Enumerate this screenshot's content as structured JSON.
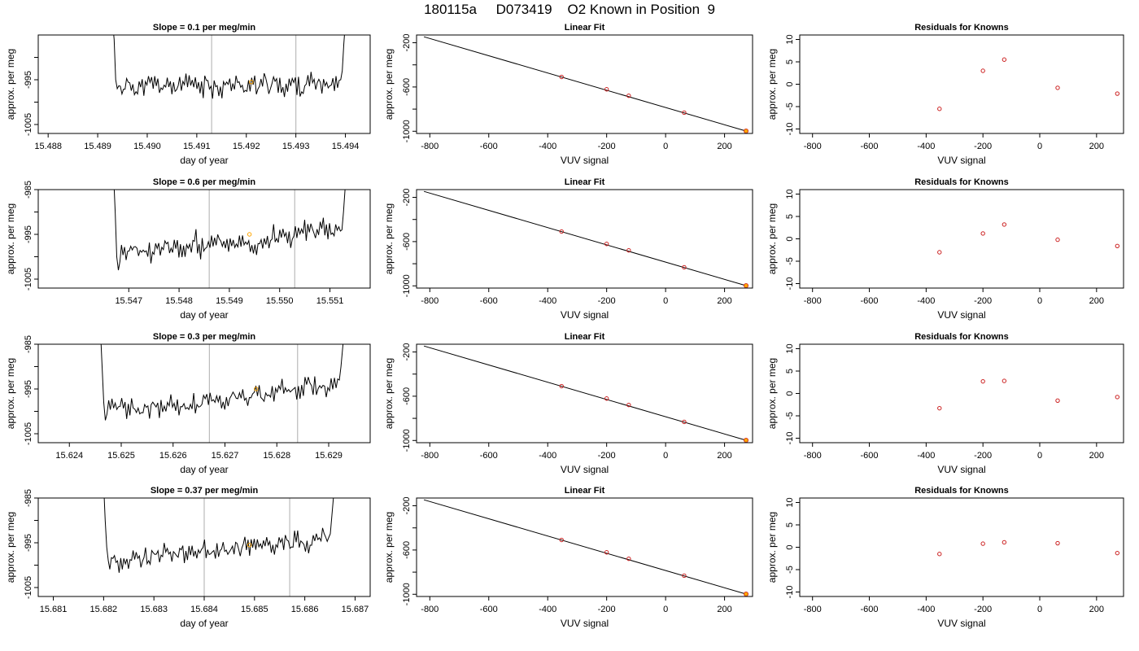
{
  "figure": {
    "title": "180115a     D073419    O2 Known in Position  9",
    "colors": {
      "trace": "#000000",
      "marker": "#ffa500",
      "residual": "#cc2222",
      "vline": "#bbbbbb",
      "fit_line": "#000000"
    }
  },
  "chart_data": [
    {
      "type": "line",
      "name": "row1-trace",
      "title": "Slope =  0.1  per meg/min",
      "xlabel": "day of year",
      "ylabel": "approx. per meg",
      "xlim": [
        15.4878,
        15.4945
      ],
      "ylim": [
        -1007,
        -985
      ],
      "xticks": [
        15.488,
        15.489,
        15.49,
        15.491,
        15.492,
        15.493,
        15.494
      ],
      "xtick_labels": [
        "15.488",
        "15.489",
        "15.490",
        "15.491",
        "15.492",
        "15.493",
        "15.494"
      ],
      "yticks": [
        -1005,
        -1000,
        -995,
        -990
      ],
      "ytick_labels": [
        "-1005",
        "",
        "-995",
        ""
      ],
      "x_start": 15.4893,
      "x_end": 15.494,
      "series_seed": 11,
      "entry_y": [
        -982,
        -986,
        -995,
        -997
      ],
      "exit_y": [
        -995,
        -993,
        -987,
        -982
      ],
      "mean": -996.5,
      "drift": 0.5,
      "amp": 1.6,
      "vlines": [
        15.4913,
        15.493
      ],
      "marker": {
        "x": 15.4921,
        "y": -995.5
      }
    },
    {
      "type": "line",
      "name": "fit-row1",
      "title": "Linear Fit",
      "xlabel": "VUV signal",
      "ylabel": "approx. per meg",
      "xlim": [
        -845,
        295
      ],
      "ylim": [
        -1020,
        -130
      ],
      "xticks": [
        -800,
        -600,
        -400,
        -200,
        0,
        200
      ],
      "xtick_labels": [
        "-800",
        "-600",
        "-400",
        "-200",
        "0",
        "200"
      ],
      "yticks": [
        -1000,
        -800,
        -600,
        -400,
        -200
      ],
      "ytick_labels": [
        "-1000",
        "",
        "-600",
        "",
        "-200"
      ],
      "fit_x": [
        -820,
        275
      ],
      "fit_y": [
        -146,
        -1000
      ],
      "points": [
        {
          "x": -353,
          "y": -509
        },
        {
          "x": -200,
          "y": -621
        },
        {
          "x": -125,
          "y": -679
        },
        {
          "x": 63,
          "y": -832
        }
      ],
      "highlight": {
        "x": 273,
        "y": -998
      }
    },
    {
      "type": "scatter",
      "name": "resid-row1",
      "title": "Residuals for Knowns",
      "xlabel": "VUV signal",
      "ylabel": "approx. per meg",
      "xlim": [
        -845,
        295
      ],
      "ylim": [
        -11,
        11
      ],
      "xticks": [
        -800,
        -600,
        -400,
        -200,
        0,
        200
      ],
      "xtick_labels": [
        "-800",
        "-600",
        "-400",
        "-200",
        "0",
        "200"
      ],
      "yticks": [
        -10,
        -5,
        0,
        5,
        10
      ],
      "ytick_labels": [
        "-10",
        "-5",
        "0",
        "5",
        "10"
      ],
      "points": [
        {
          "x": -353,
          "y": -5.5
        },
        {
          "x": -200,
          "y": 3.0
        },
        {
          "x": -125,
          "y": 5.5
        },
        {
          "x": 63,
          "y": -0.8
        },
        {
          "x": 273,
          "y": -2.1
        }
      ]
    },
    {
      "type": "line",
      "name": "row2-trace",
      "title": "Slope =  0.6  per meg/min",
      "xlabel": "day of year",
      "ylabel": "approx. per meg",
      "xlim": [
        15.5452,
        15.5518
      ],
      "ylim": [
        -1007,
        -985
      ],
      "xticks": [
        15.547,
        15.548,
        15.549,
        15.55,
        15.551
      ],
      "xtick_labels": [
        "15.547",
        "15.548",
        "15.549",
        "15.550",
        "15.551"
      ],
      "yticks": [
        -1005,
        -1000,
        -995,
        -990,
        -985
      ],
      "ytick_labels": [
        "-1005",
        "",
        "-995",
        "",
        "-985"
      ],
      "x_start": 15.5467,
      "x_end": 15.5513,
      "series_seed": 23,
      "entry_y": [
        -982,
        -990,
        -1000,
        -1003
      ],
      "exit_y": [
        -994,
        -990,
        -985
      ],
      "mean": -999.5,
      "drift": 5.5,
      "amp": 1.7,
      "vlines": [
        15.5486,
        15.5503
      ],
      "marker": {
        "x": 15.5494,
        "y": -995
      }
    },
    {
      "type": "line",
      "name": "fit-row2",
      "title": "Linear Fit",
      "xlabel": "VUV signal",
      "ylabel": "approx. per meg",
      "xlim": [
        -845,
        295
      ],
      "ylim": [
        -1020,
        -130
      ],
      "xticks": [
        -800,
        -600,
        -400,
        -200,
        0,
        200
      ],
      "xtick_labels": [
        "-800",
        "-600",
        "-400",
        "-200",
        "0",
        "200"
      ],
      "yticks": [
        -1000,
        -800,
        -600,
        -400,
        -200
      ],
      "ytick_labels": [
        "-1000",
        "",
        "-600",
        "",
        "-200"
      ],
      "fit_x": [
        -820,
        275
      ],
      "fit_y": [
        -146,
        -1000
      ],
      "points": [
        {
          "x": -353,
          "y": -509
        },
        {
          "x": -200,
          "y": -621
        },
        {
          "x": -125,
          "y": -679
        },
        {
          "x": 63,
          "y": -832
        }
      ],
      "highlight": {
        "x": 273,
        "y": -998
      }
    },
    {
      "type": "scatter",
      "name": "resid-row2",
      "title": "Residuals for Knowns",
      "xlabel": "VUV signal",
      "ylabel": "approx. per meg",
      "xlim": [
        -845,
        295
      ],
      "ylim": [
        -11,
        11
      ],
      "xticks": [
        -800,
        -600,
        -400,
        -200,
        0,
        200
      ],
      "xtick_labels": [
        "-800",
        "-600",
        "-400",
        "-200",
        "0",
        "200"
      ],
      "yticks": [
        -10,
        -5,
        0,
        5,
        10
      ],
      "ytick_labels": [
        "-10",
        "-5",
        "0",
        "5",
        "10"
      ],
      "points": [
        {
          "x": -353,
          "y": -3.0
        },
        {
          "x": -200,
          "y": 1.2
        },
        {
          "x": -125,
          "y": 3.2
        },
        {
          "x": 63,
          "y": -0.2
        },
        {
          "x": 273,
          "y": -1.6
        }
      ]
    },
    {
      "type": "line",
      "name": "row3-trace",
      "title": "Slope =  0.3  per meg/min",
      "xlabel": "day of year",
      "ylabel": "approx. per meg",
      "xlim": [
        15.6234,
        15.6298
      ],
      "ylim": [
        -1007,
        -985
      ],
      "xticks": [
        15.624,
        15.625,
        15.626,
        15.627,
        15.628,
        15.629
      ],
      "xtick_labels": [
        "15.624",
        "15.625",
        "15.626",
        "15.627",
        "15.628",
        "15.629"
      ],
      "yticks": [
        -1005,
        -1000,
        -995,
        -990,
        -985
      ],
      "ytick_labels": [
        "-1005",
        "",
        "-995",
        "",
        "-985"
      ],
      "x_start": 15.6246,
      "x_end": 15.6293,
      "series_seed": 37,
      "entry_y": [
        -982,
        -990,
        -998,
        -1002
      ],
      "exit_y": [
        -993,
        -990,
        -986,
        -982
      ],
      "mean": -1000.5,
      "drift": 6.5,
      "amp": 1.6,
      "vlines": [
        15.6267,
        15.6284
      ],
      "marker": {
        "x": 15.6276,
        "y": -995
      }
    },
    {
      "type": "line",
      "name": "fit-row3",
      "title": "Linear Fit",
      "xlabel": "VUV signal",
      "ylabel": "approx. per meg",
      "xlim": [
        -845,
        295
      ],
      "ylim": [
        -1020,
        -130
      ],
      "xticks": [
        -800,
        -600,
        -400,
        -200,
        0,
        200
      ],
      "xtick_labels": [
        "-800",
        "-600",
        "-400",
        "-200",
        "0",
        "200"
      ],
      "yticks": [
        -1000,
        -800,
        -600,
        -400,
        -200
      ],
      "ytick_labels": [
        "-1000",
        "",
        "-600",
        "",
        "-200"
      ],
      "fit_x": [
        -820,
        275
      ],
      "fit_y": [
        -146,
        -1000
      ],
      "points": [
        {
          "x": -353,
          "y": -509
        },
        {
          "x": -200,
          "y": -621
        },
        {
          "x": -125,
          "y": -679
        },
        {
          "x": 63,
          "y": -832
        }
      ],
      "highlight": {
        "x": 273,
        "y": -998
      }
    },
    {
      "type": "scatter",
      "name": "resid-row3",
      "title": "Residuals for Knowns",
      "xlabel": "VUV signal",
      "ylabel": "approx. per meg",
      "xlim": [
        -845,
        295
      ],
      "ylim": [
        -11,
        11
      ],
      "xticks": [
        -800,
        -600,
        -400,
        -200,
        0,
        200
      ],
      "xtick_labels": [
        "-800",
        "-600",
        "-400",
        "-200",
        "0",
        "200"
      ],
      "yticks": [
        -10,
        -5,
        0,
        5,
        10
      ],
      "ytick_labels": [
        "-10",
        "-5",
        "0",
        "5",
        "10"
      ],
      "points": [
        {
          "x": -353,
          "y": -3.3
        },
        {
          "x": -200,
          "y": 2.7
        },
        {
          "x": -125,
          "y": 2.8
        },
        {
          "x": 63,
          "y": -1.6
        },
        {
          "x": 273,
          "y": -0.8
        }
      ]
    },
    {
      "type": "line",
      "name": "row4-trace",
      "title": "Slope =  0.37  per meg/min",
      "xlabel": "day of year",
      "ylabel": "approx. per meg",
      "xlim": [
        15.6807,
        15.6873
      ],
      "ylim": [
        -1007,
        -985
      ],
      "xticks": [
        15.681,
        15.682,
        15.683,
        15.684,
        15.685,
        15.686,
        15.687
      ],
      "xtick_labels": [
        "15.681",
        "15.682",
        "15.683",
        "15.684",
        "15.685",
        "15.686",
        "15.687"
      ],
      "yticks": [
        -1005,
        -1000,
        -995,
        -990,
        -985
      ],
      "ytick_labels": [
        "-1005",
        "",
        "-995",
        "",
        "-985"
      ],
      "x_start": 15.682,
      "x_end": 15.6866,
      "series_seed": 53,
      "entry_y": [
        -982,
        -990,
        -996,
        -999
      ],
      "exit_y": [
        -993,
        -989,
        -985,
        -982
      ],
      "mean": -999,
      "drift": 5.0,
      "amp": 1.5,
      "vlines": [
        15.684,
        15.6857
      ],
      "marker": {
        "x": 15.6849,
        "y": -995.5
      }
    },
    {
      "type": "line",
      "name": "fit-row4",
      "title": "Linear Fit",
      "xlabel": "VUV signal",
      "ylabel": "approx. per meg",
      "xlim": [
        -845,
        295
      ],
      "ylim": [
        -1020,
        -130
      ],
      "xticks": [
        -800,
        -600,
        -400,
        -200,
        0,
        200
      ],
      "xtick_labels": [
        "-800",
        "-600",
        "-400",
        "-200",
        "0",
        "200"
      ],
      "yticks": [
        -1000,
        -800,
        -600,
        -400,
        -200
      ],
      "ytick_labels": [
        "-1000",
        "",
        "-600",
        "",
        "-200"
      ],
      "fit_x": [
        -820,
        275
      ],
      "fit_y": [
        -146,
        -1000
      ],
      "points": [
        {
          "x": -353,
          "y": -509
        },
        {
          "x": -200,
          "y": -621
        },
        {
          "x": -125,
          "y": -679
        },
        {
          "x": 63,
          "y": -832
        }
      ],
      "highlight": {
        "x": 273,
        "y": -998
      }
    },
    {
      "type": "scatter",
      "name": "resid-row4",
      "title": "Residuals for Knowns",
      "xlabel": "VUV signal",
      "ylabel": "approx. per meg",
      "xlim": [
        -845,
        295
      ],
      "ylim": [
        -11,
        11
      ],
      "xticks": [
        -800,
        -600,
        -400,
        -200,
        0,
        200
      ],
      "xtick_labels": [
        "-800",
        "-600",
        "-400",
        "-200",
        "0",
        "200"
      ],
      "yticks": [
        -10,
        -5,
        0,
        5,
        10
      ],
      "ytick_labels": [
        "-10",
        "-5",
        "0",
        "5",
        "10"
      ],
      "points": [
        {
          "x": -353,
          "y": -1.5
        },
        {
          "x": -200,
          "y": 0.8
        },
        {
          "x": -125,
          "y": 1.1
        },
        {
          "x": 63,
          "y": 0.9
        },
        {
          "x": 273,
          "y": -1.3
        }
      ]
    }
  ]
}
